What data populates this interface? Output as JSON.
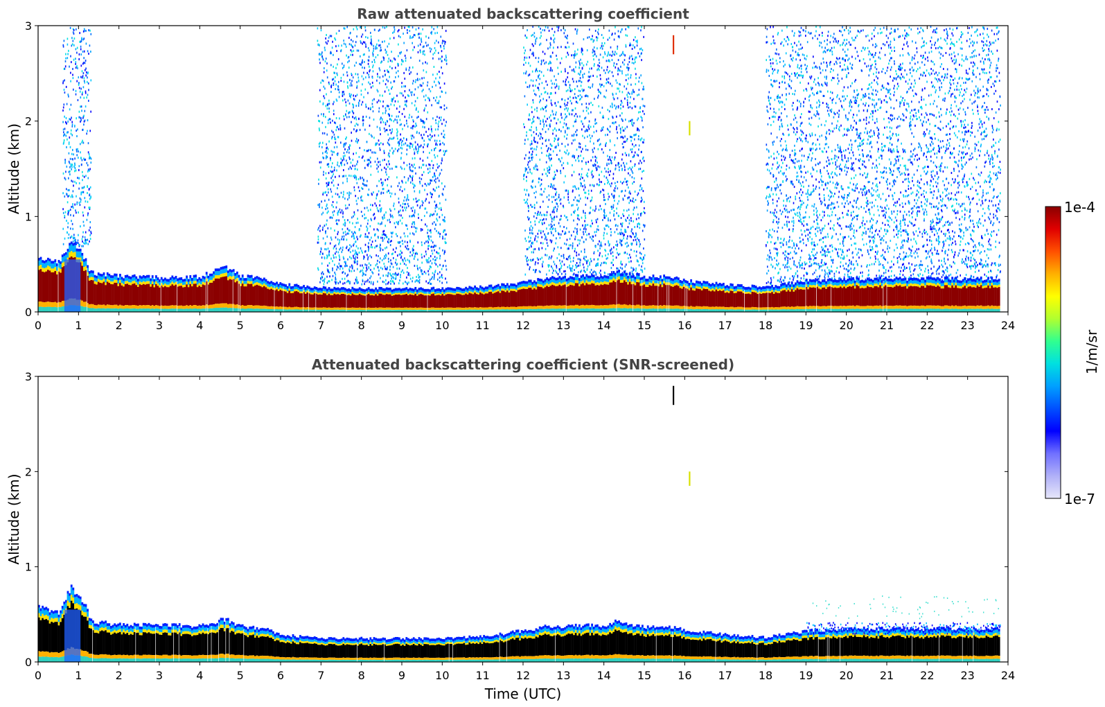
{
  "chart_data": [
    {
      "type": "heatmap",
      "title": "Raw attenuated backscattering coefficient",
      "xlabel": "",
      "ylabel": "Altitude (km)",
      "xlim": [
        0,
        24
      ],
      "ylim": [
        0,
        3
      ],
      "xticks": [
        "0",
        "1",
        "2",
        "3",
        "4",
        "5",
        "6",
        "7",
        "8",
        "9",
        "10",
        "11",
        "12",
        "13",
        "14",
        "15",
        "16",
        "17",
        "18",
        "19",
        "20",
        "21",
        "22",
        "23",
        "24"
      ],
      "yticks": [
        "0",
        "1",
        "2",
        "3"
      ],
      "data_end_hour": 23.8,
      "features": {
        "boundary_layer_top_km": [
          [
            0,
            0.55
          ],
          [
            0.5,
            0.5
          ],
          [
            0.8,
            0.72
          ],
          [
            1.0,
            0.65
          ],
          [
            1.3,
            0.38
          ],
          [
            2,
            0.35
          ],
          [
            3,
            0.33
          ],
          [
            4,
            0.34
          ],
          [
            4.6,
            0.45
          ],
          [
            5,
            0.35
          ],
          [
            5.6,
            0.32
          ],
          [
            6,
            0.26
          ],
          [
            7,
            0.23
          ],
          [
            8,
            0.22
          ],
          [
            9,
            0.22
          ],
          [
            10,
            0.22
          ],
          [
            11,
            0.24
          ],
          [
            12,
            0.28
          ],
          [
            12.5,
            0.32
          ],
          [
            13,
            0.34
          ],
          [
            14,
            0.36
          ],
          [
            14.3,
            0.4
          ],
          [
            15,
            0.34
          ],
          [
            15.7,
            0.34
          ],
          [
            16,
            0.3
          ],
          [
            17,
            0.26
          ],
          [
            18,
            0.23
          ],
          [
            19,
            0.3
          ],
          [
            20,
            0.32
          ],
          [
            21,
            0.32
          ],
          [
            22,
            0.32
          ],
          [
            23,
            0.32
          ],
          [
            23.8,
            0.32
          ]
        ],
        "noise_regions": [
          {
            "x": [
              0.6,
              1.3
            ],
            "y": [
              0.7,
              3.0
            ]
          },
          {
            "x": [
              6.9,
              10.1
            ],
            "y": [
              0.3,
              3.0
            ]
          },
          {
            "x": [
              12.0,
              15.0
            ],
            "y": [
              0.4,
              3.0
            ]
          },
          {
            "x": [
              18.0,
              23.8
            ],
            "y": [
              0.3,
              3.0
            ]
          }
        ],
        "spikes": [
          {
            "x": 15.72,
            "y": [
              2.7,
              2.9
            ],
            "color": "#e03000"
          },
          {
            "x": 16.12,
            "y": [
              1.85,
              2.0
            ],
            "color": "#d8e000"
          }
        ]
      }
    },
    {
      "type": "heatmap",
      "title": "Attenuated backscattering coefficient (SNR-screened)",
      "xlabel": "Time (UTC)",
      "ylabel": "Altitude (km)",
      "xlim": [
        0,
        24
      ],
      "ylim": [
        0,
        3
      ],
      "xticks": [
        "0",
        "1",
        "2",
        "3",
        "4",
        "5",
        "6",
        "7",
        "8",
        "9",
        "10",
        "11",
        "12",
        "13",
        "14",
        "15",
        "16",
        "17",
        "18",
        "19",
        "20",
        "21",
        "22",
        "23",
        "24"
      ],
      "yticks": [
        "0",
        "1",
        "2",
        "3"
      ],
      "data_end_hour": 23.8,
      "features": {
        "boundary_layer_top_km": [
          [
            0,
            0.55
          ],
          [
            0.5,
            0.5
          ],
          [
            0.8,
            0.75
          ],
          [
            1.0,
            0.7
          ],
          [
            1.3,
            0.4
          ],
          [
            2,
            0.36
          ],
          [
            3,
            0.36
          ],
          [
            4,
            0.35
          ],
          [
            4.6,
            0.42
          ],
          [
            5,
            0.35
          ],
          [
            5.6,
            0.32
          ],
          [
            6,
            0.26
          ],
          [
            7,
            0.22
          ],
          [
            8,
            0.22
          ],
          [
            9,
            0.22
          ],
          [
            10,
            0.22
          ],
          [
            11,
            0.24
          ],
          [
            12,
            0.3
          ],
          [
            12.5,
            0.34
          ],
          [
            13,
            0.35
          ],
          [
            14,
            0.36
          ],
          [
            14.3,
            0.4
          ],
          [
            15,
            0.34
          ],
          [
            15.7,
            0.34
          ],
          [
            16,
            0.3
          ],
          [
            17,
            0.26
          ],
          [
            18,
            0.23
          ],
          [
            19,
            0.3
          ],
          [
            20,
            0.32
          ],
          [
            21,
            0.32
          ],
          [
            22,
            0.32
          ],
          [
            23,
            0.32
          ],
          [
            23.8,
            0.32
          ]
        ],
        "spikes": [
          {
            "x": 15.72,
            "y": [
              2.7,
              2.9
            ],
            "color": "#000000"
          },
          {
            "x": 16.12,
            "y": [
              1.85,
              2.0
            ],
            "color": "#d8e000"
          }
        ]
      }
    }
  ],
  "colorbar": {
    "label": "1/m/sr",
    "max_label": "1e-4",
    "min_label": "1e-7",
    "scale": "log",
    "range": [
      1e-07,
      0.0001
    ],
    "colors": [
      "#e6e6fa",
      "#b0b0f8",
      "#7070ff",
      "#0000ff",
      "#0050ff",
      "#00a0ff",
      "#00e0e0",
      "#30ff90",
      "#b0ff30",
      "#ffff00",
      "#ffb000",
      "#ff5000",
      "#e00000",
      "#8b0000"
    ]
  }
}
